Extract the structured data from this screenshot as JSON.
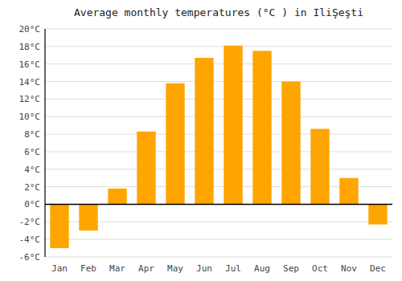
{
  "chart_data": {
    "type": "bar",
    "title": "Average monthly temperatures (°C ) in IliŞeşti",
    "categories": [
      "Jan",
      "Feb",
      "Mar",
      "Apr",
      "May",
      "Jun",
      "Jul",
      "Aug",
      "Sep",
      "Oct",
      "Nov",
      "Dec"
    ],
    "values": [
      -5.0,
      -3.0,
      1.8,
      8.3,
      13.8,
      16.7,
      18.1,
      17.5,
      14.0,
      8.6,
      3.0,
      -2.3
    ],
    "color": "#FFA500",
    "ylim": [
      -6,
      20
    ],
    "yticks": [
      {
        "value": -6,
        "label": "-6°C"
      },
      {
        "value": -4,
        "label": "-4°C"
      },
      {
        "value": -2,
        "label": "-2°C"
      },
      {
        "value": 0,
        "label": "0°C"
      },
      {
        "value": 2,
        "label": "2°C"
      },
      {
        "value": 4,
        "label": "4°C"
      },
      {
        "value": 6,
        "label": "6°C"
      },
      {
        "value": 8,
        "label": "8°C"
      },
      {
        "value": 10,
        "label": "10°C"
      },
      {
        "value": 12,
        "label": "12°C"
      },
      {
        "value": 14,
        "label": "14°C"
      },
      {
        "value": 16,
        "label": "16°C"
      },
      {
        "value": 18,
        "label": "18°C"
      },
      {
        "value": 20,
        "label": "20°C"
      }
    ],
    "grid": true
  }
}
